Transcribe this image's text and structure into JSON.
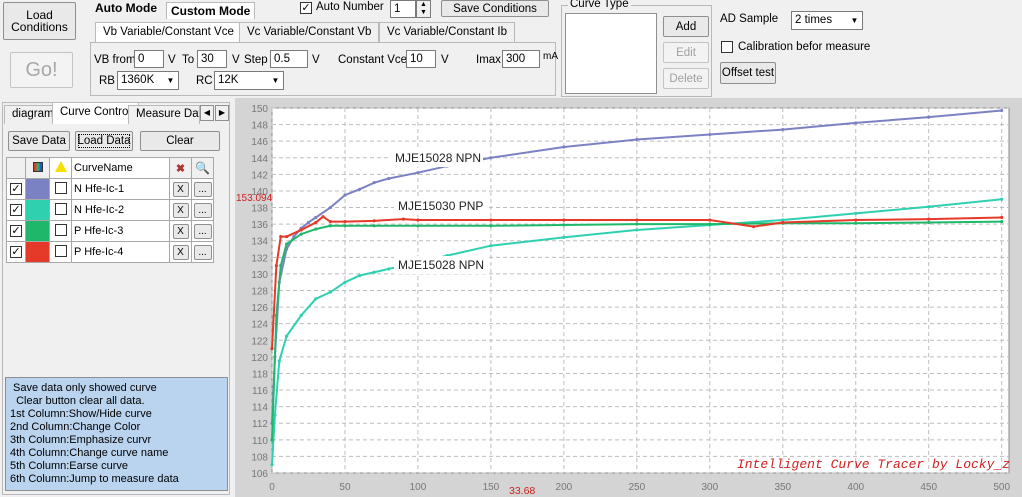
{
  "toolbar": {
    "load_conditions": "Load\nConditions",
    "go": "Go!",
    "auto_mode": "Auto Mode",
    "custom_mode": "Custom Mode",
    "auto_number_label": "Auto Number",
    "auto_number_value": "1",
    "save_conditions": "Save Conditions",
    "curve_type_title": "Curve Type",
    "add": "Add",
    "edit": "Edit",
    "delete": "Delete",
    "ad_sample_label": "AD Sample",
    "ad_sample_value": "2 times",
    "calibration_label": "Calibration befor measure",
    "offset_test": "Offset test"
  },
  "mode_tabs": [
    "Vb Variable/Constant Vce",
    "Vc Variable/Constant Vb",
    "Vc Variable/Constant Ib"
  ],
  "params": {
    "vb_from_label": "VB from",
    "vb_from": "0",
    "unit_v1": "V",
    "to_label": "To",
    "to": "30",
    "unit_v2": "V",
    "step_label": "Step",
    "step": "0.5",
    "unit_v3": "V",
    "const_vce_label": "Constant Vce",
    "const_vce": "10",
    "unit_v4": "V",
    "imax_label": "Imax",
    "imax": "300",
    "unit_ma": "mA",
    "rb_label": "RB",
    "rb": "1360K",
    "rc_label": "RC",
    "rc": "12K"
  },
  "left_tabs": [
    "diagram",
    "Curve Control",
    "Measure Data"
  ],
  "left_buttons": {
    "save_data": "Save Data",
    "load_data": "Load Data",
    "clear": "Clear"
  },
  "curve_table": {
    "header_name": "CurveName",
    "rows": [
      {
        "checked": true,
        "color": "#7b82c4",
        "name": "N Hfe-Ic-1",
        "x": "X",
        "dots": "..."
      },
      {
        "checked": true,
        "color": "#2fd0b0",
        "name": "N Hfe-Ic-2",
        "x": "X",
        "dots": "..."
      },
      {
        "checked": true,
        "color": "#1fb86a",
        "name": "P Hfe-Ic-3",
        "x": "X",
        "dots": "..."
      },
      {
        "checked": true,
        "color": "#e53a2a",
        "name": "P Hfe-Ic-4",
        "x": "X",
        "dots": "..."
      }
    ]
  },
  "help_text": [
    " Save data only showed curve",
    "  Clear button clear all data.",
    "1st Column:Show/Hide curve",
    "2nd Column:Change Color",
    "3th Column:Emphasize curvr",
    "4th Column:Change curve name",
    "5th Column:Earse curve",
    "6th Column:Jump to measure data"
  ],
  "chart_data": {
    "type": "line",
    "xlim": [
      0,
      505
    ],
    "ylim": [
      106,
      150
    ],
    "xticks": [
      "0",
      "50",
      "100",
      "150",
      "200",
      "250",
      "300",
      "350",
      "400",
      "450",
      "500"
    ],
    "yticks": [
      "106",
      "108",
      "110",
      "112",
      "114",
      "116",
      "118",
      "120",
      "122",
      "124",
      "126",
      "128",
      "130",
      "132",
      "134",
      "136",
      "138",
      "140",
      "142",
      "144",
      "146",
      "148",
      "150"
    ],
    "grid": true,
    "cursor_y_label": "153.094",
    "cursor_x_label": "33.68",
    "annotations": [
      "MJE15028 NPN",
      "MJE15030 PNP",
      "MJE15028 NPN"
    ],
    "watermark": "Intelligent Curve Tracer by Locky_z",
    "series": [
      {
        "color": "#7b82c4",
        "x": [
          0,
          2,
          5,
          10,
          15,
          20,
          25,
          30,
          40,
          50,
          60,
          70,
          80,
          100,
          120,
          150,
          200,
          250,
          300,
          350,
          400,
          450,
          500
        ],
        "y": [
          112,
          120,
          129,
          133,
          134.5,
          135.5,
          136.2,
          136.8,
          138,
          139.5,
          140.2,
          141,
          141.5,
          142.2,
          143,
          144,
          145.3,
          146.2,
          146.8,
          147.4,
          148.2,
          148.9,
          149.7
        ]
      },
      {
        "color": "#2fd0b0",
        "x": [
          0,
          2,
          5,
          10,
          20,
          30,
          40,
          50,
          60,
          70,
          80,
          90,
          100,
          120,
          150,
          200,
          250,
          300,
          350,
          400,
          450,
          500
        ],
        "y": [
          107,
          113,
          119.5,
          122.5,
          125,
          127,
          127.8,
          129,
          129.8,
          130.2,
          130.6,
          131,
          131.3,
          132.2,
          133.4,
          134.4,
          135.3,
          135.9,
          136.5,
          137.3,
          138.1,
          139
        ]
      },
      {
        "color": "#1fb86a",
        "x": [
          0,
          3,
          6,
          10,
          20,
          30,
          40,
          50,
          70,
          100,
          150,
          200,
          250,
          300,
          350,
          400,
          450,
          500
        ],
        "y": [
          110,
          125,
          131,
          133.6,
          134.8,
          135.4,
          135.8,
          135.8,
          135.8,
          135.8,
          135.8,
          135.9,
          136,
          136,
          136.1,
          136.1,
          136.2,
          136.3
        ]
      },
      {
        "color": "#e53a2a",
        "x": [
          0,
          3,
          6,
          10,
          20,
          30,
          35,
          40,
          50,
          70,
          90,
          100,
          150,
          200,
          250,
          300,
          330,
          350,
          400,
          450,
          500
        ],
        "y": [
          121,
          131,
          134.5,
          134.5,
          135.3,
          136.2,
          136.9,
          136.3,
          136.3,
          136.4,
          136.6,
          136.5,
          136.5,
          136.5,
          136.5,
          136.5,
          135.7,
          136.2,
          136.5,
          136.6,
          136.8
        ]
      }
    ]
  }
}
